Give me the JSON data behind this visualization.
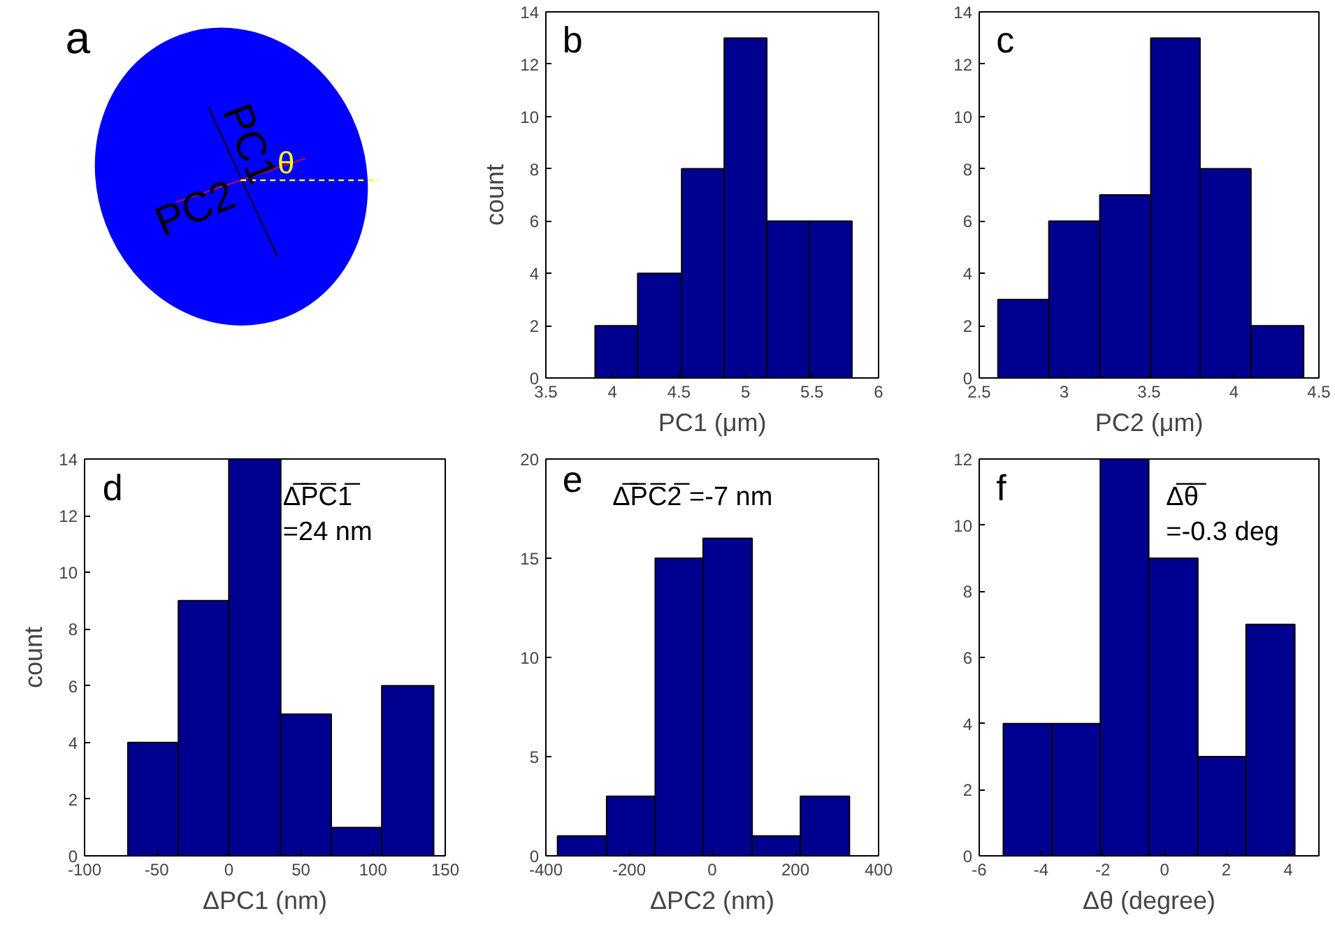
{
  "chart_data": [
    {
      "type": "other",
      "annotations": [
        "a",
        "PC1",
        "PC2",
        "θ"
      ]
    },
    {
      "type": "histogram",
      "bins": [
        3.87,
        4.19,
        4.52,
        4.84,
        5.16,
        5.48,
        5.8
      ],
      "values": [
        2,
        4,
        8,
        13,
        6,
        6
      ],
      "color": "#000090",
      "xlabel": "PC1 (μm)",
      "ylabel": "count",
      "xlim": [
        3.5,
        6
      ],
      "xticks": [
        3.5,
        4,
        4.5,
        5,
        5.5,
        6
      ],
      "ylim": [
        0,
        14
      ],
      "yticks": [
        0,
        2,
        4,
        6,
        8,
        10,
        12,
        14
      ],
      "annotations": [
        "b"
      ]
    },
    {
      "type": "histogram",
      "bins": [
        2.61,
        2.91,
        3.21,
        3.51,
        3.8,
        4.1,
        4.41
      ],
      "values": [
        3,
        6,
        7,
        13,
        8,
        2
      ],
      "color": "#000090",
      "xlabel": "PC2 (μm)",
      "xlim": [
        2.5,
        4.5
      ],
      "xticks": [
        2.5,
        3,
        3.5,
        4,
        4.5
      ],
      "ylim": [
        0,
        14
      ],
      "yticks": [
        0,
        2,
        4,
        6,
        8,
        10,
        12,
        14
      ],
      "annotations": [
        "c"
      ]
    },
    {
      "type": "histogram",
      "bins": [
        -70,
        -35,
        0,
        36,
        71,
        106,
        142
      ],
      "values": [
        4,
        9,
        14,
        5,
        1,
        6
      ],
      "color": "#000090",
      "xlabel": "ΔPC1 (nm)",
      "ylabel": "count",
      "xlim": [
        -100,
        150
      ],
      "xticks": [
        -100,
        -50,
        0,
        50,
        100,
        150
      ],
      "ylim": [
        0,
        14
      ],
      "yticks": [
        0,
        2,
        4,
        6,
        8,
        10,
        12,
        14
      ],
      "annotations": [
        "d",
        "Δ̅P̅C̅1̅\n=24 nm"
      ]
    },
    {
      "type": "histogram",
      "bins": [
        -372,
        -254,
        -137,
        -22,
        96,
        212,
        330
      ],
      "values": [
        1,
        3,
        15,
        16,
        1,
        3
      ],
      "color": "#000090",
      "xlabel": "ΔPC2 (nm)",
      "xlim": [
        -400,
        400
      ],
      "xticks": [
        -400,
        -200,
        0,
        200,
        400
      ],
      "ylim": [
        0,
        20
      ],
      "yticks": [
        0,
        5,
        10,
        15,
        20
      ],
      "annotations": [
        "e",
        "Δ̅P̅C̅2̅ =-7 nm"
      ]
    },
    {
      "type": "histogram",
      "bins": [
        -5.22,
        -3.64,
        -2.08,
        -0.51,
        1.08,
        2.64,
        4.22
      ],
      "values": [
        4,
        4,
        12,
        9,
        3,
        7
      ],
      "color": "#000090",
      "xlabel": "Δθ (degree)",
      "xlim": [
        -6,
        5
      ],
      "xticks": [
        -6,
        -4,
        -2,
        0,
        2,
        4
      ],
      "ylim": [
        0,
        12
      ],
      "yticks": [
        0,
        2,
        4,
        6,
        8,
        10,
        12
      ],
      "annotations": [
        "f",
        "Δ̅θ̅\n=-0.3 deg"
      ]
    }
  ]
}
